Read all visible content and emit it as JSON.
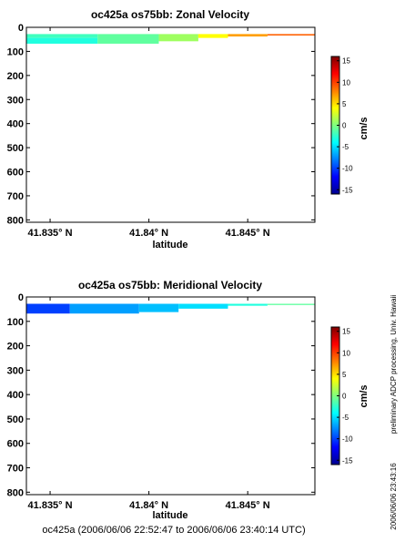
{
  "chart_data": [
    {
      "type": "heatmap",
      "title": "oc425a os75bb: Zonal Velocity",
      "xlabel": "latitude",
      "ylabel": "",
      "x_ticks": [
        "41.835° N",
        "41.84° N",
        "41.845° N"
      ],
      "x_tick_values": [
        41.835,
        41.84,
        41.845
      ],
      "xlim": [
        41.8338,
        41.8484
      ],
      "y_ticks": [
        "0",
        "100",
        "200",
        "300",
        "400",
        "500",
        "600",
        "700",
        "800"
      ],
      "ylim": [
        0,
        810
      ],
      "y_reversed": true,
      "colorbar": {
        "label": "cm/s",
        "ticks": [
          "15",
          "10",
          "5",
          "0",
          "-5",
          "-10",
          "-15"
        ],
        "range": [
          -16,
          16
        ]
      },
      "data": [
        {
          "lat_start": 41.8338,
          "lat_end": 41.8374,
          "depth_top": 28,
          "depth_bottom": 44,
          "velocity": -2
        },
        {
          "lat_start": 41.8338,
          "lat_end": 41.8374,
          "depth_top": 44,
          "depth_bottom": 68,
          "velocity": -3
        },
        {
          "lat_start": 41.8374,
          "lat_end": 41.8405,
          "depth_top": 28,
          "depth_bottom": 68,
          "velocity": -1
        },
        {
          "lat_start": 41.8405,
          "lat_end": 41.8425,
          "depth_top": 28,
          "depth_bottom": 58,
          "velocity": 1
        },
        {
          "lat_start": 41.8425,
          "lat_end": 41.844,
          "depth_top": 28,
          "depth_bottom": 44,
          "velocity": 4
        },
        {
          "lat_start": 41.844,
          "lat_end": 41.846,
          "depth_top": 28,
          "depth_bottom": 38,
          "velocity": 7
        },
        {
          "lat_start": 41.846,
          "lat_end": 41.8484,
          "depth_top": 28,
          "depth_bottom": 34,
          "velocity": 9
        }
      ]
    },
    {
      "type": "heatmap",
      "title": "oc425a os75bb: Meridional Velocity",
      "xlabel": "latitude",
      "ylabel": "",
      "x_ticks": [
        "41.835° N",
        "41.84° N",
        "41.845° N"
      ],
      "x_tick_values": [
        41.835,
        41.84,
        41.845
      ],
      "xlim": [
        41.8338,
        41.8484
      ],
      "y_ticks": [
        "0",
        "100",
        "200",
        "300",
        "400",
        "500",
        "600",
        "700",
        "800"
      ],
      "ylim": [
        0,
        810
      ],
      "y_reversed": true,
      "colorbar": {
        "label": "cm/s",
        "ticks": [
          "15",
          "10",
          "5",
          "0",
          "-5",
          "-10",
          "-15"
        ],
        "range": [
          -16,
          16
        ]
      },
      "data": [
        {
          "lat_start": 41.8338,
          "lat_end": 41.836,
          "depth_top": 28,
          "depth_bottom": 68,
          "velocity": -10
        },
        {
          "lat_start": 41.836,
          "lat_end": 41.8395,
          "depth_top": 28,
          "depth_bottom": 68,
          "velocity": -7
        },
        {
          "lat_start": 41.8395,
          "lat_end": 41.8415,
          "depth_top": 28,
          "depth_bottom": 62,
          "velocity": -6
        },
        {
          "lat_start": 41.8415,
          "lat_end": 41.844,
          "depth_top": 28,
          "depth_bottom": 48,
          "velocity": -5
        },
        {
          "lat_start": 41.844,
          "lat_end": 41.846,
          "depth_top": 28,
          "depth_bottom": 36,
          "velocity": -3
        },
        {
          "lat_start": 41.846,
          "lat_end": 41.8484,
          "depth_top": 28,
          "depth_bottom": 33,
          "velocity": -1
        }
      ]
    }
  ],
  "footer": {
    "time_range": "oc425a (2006/06/06 22:52:47 to 2006/06/06 23:40:14 UTC)",
    "side_note": "preliminary ADCP processing,  Univ. Hawaii",
    "timestamp": "2006/06/06 23:43:16"
  }
}
